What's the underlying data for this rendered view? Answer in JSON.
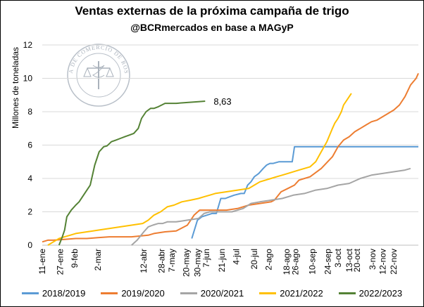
{
  "chart_data": {
    "type": "line",
    "title": "Ventas externas de la próxima campaña de trigo",
    "subtitle": "@BCRmercados en base a MAGyP",
    "xlabel": "",
    "ylabel": "Millones de toneladas",
    "ylim": [
      0,
      12
    ],
    "yticks": [
      "0",
      "2",
      "4",
      "6",
      "8",
      "10",
      "12"
    ],
    "xlim": [
      0,
      337
    ],
    "categories": [
      "11-ene",
      "27-ene",
      "9-feb",
      "2-mar",
      "12-abr",
      "28-abr",
      "7-may",
      "20-may",
      "30-may",
      "7-jun",
      "21-jun",
      "4-jul",
      "20-jul",
      "2-ago",
      "18-ago",
      "26-ago",
      "10-sep",
      "24-sep",
      "13-oct",
      "3-oct",
      "20-oct",
      "3-nov",
      "12-nov",
      "22-nov"
    ],
    "x_positions": [
      0,
      16,
      29,
      50,
      91,
      107,
      116,
      129,
      139,
      147,
      161,
      174,
      190,
      203,
      219,
      227,
      242,
      256,
      275,
      265,
      282,
      296,
      305,
      315
    ],
    "annotation": "8,63",
    "watermark": "BOLSA DE COMERCIO DE ROSARIO",
    "series": [
      {
        "name": "2018/2019",
        "color": "#5b9bd5",
        "x": [
          134,
          139,
          143,
          152,
          156,
          160,
          164,
          168,
          172,
          178,
          181,
          184,
          187,
          190,
          194,
          198,
          201,
          204,
          207,
          212,
          216,
          219,
          224,
          226,
          228,
          232,
          240,
          250,
          260,
          270,
          280,
          290,
          300,
          310,
          320,
          330,
          337
        ],
        "y": [
          0.4,
          1.5,
          1.7,
          1.9,
          1.9,
          2.8,
          2.8,
          2.9,
          3.0,
          3.1,
          3.1,
          3.6,
          3.8,
          4.1,
          4.3,
          4.6,
          4.8,
          4.9,
          4.9,
          5.0,
          5.0,
          5.0,
          5.0,
          5.9,
          5.9,
          5.9,
          5.9,
          5.9,
          5.9,
          5.9,
          5.9,
          5.9,
          5.9,
          5.9,
          5.9,
          5.9,
          5.9
        ]
      },
      {
        "name": "2019/2020",
        "color": "#ed7d31",
        "x": [
          0,
          5,
          10,
          20,
          30,
          40,
          50,
          60,
          70,
          80,
          88,
          95,
          100,
          110,
          120,
          130,
          136,
          141,
          146,
          155,
          165,
          175,
          185,
          195,
          205,
          208,
          214,
          220,
          226,
          230,
          240,
          250,
          260,
          265,
          270,
          275,
          280,
          285,
          290,
          295,
          300,
          305,
          310,
          315,
          320,
          325,
          330,
          335,
          337
        ],
        "y": [
          0.2,
          0.3,
          0.3,
          0.35,
          0.4,
          0.4,
          0.45,
          0.5,
          0.5,
          0.5,
          0.55,
          0.6,
          0.7,
          0.8,
          0.85,
          1.2,
          1.8,
          2.1,
          2.1,
          2.1,
          2.1,
          2.2,
          2.4,
          2.5,
          2.6,
          2.7,
          3.2,
          3.4,
          3.6,
          3.9,
          4.1,
          4.6,
          5.3,
          5.9,
          6.3,
          6.5,
          6.8,
          7.0,
          7.2,
          7.4,
          7.5,
          7.7,
          7.9,
          8.1,
          8.4,
          8.9,
          9.6,
          10.0,
          10.3
        ]
      },
      {
        "name": "2020/2021",
        "color": "#a5a5a5",
        "x": [
          80,
          85,
          91,
          95,
          99,
          104,
          108,
          112,
          120,
          130,
          140,
          145,
          150,
          160,
          170,
          180,
          187,
          195,
          205,
          215,
          225,
          235,
          245,
          255,
          265,
          275,
          285,
          295,
          305,
          315,
          325,
          330
        ],
        "y": [
          0.0,
          0.3,
          0.8,
          1.1,
          1.2,
          1.3,
          1.3,
          1.4,
          1.4,
          1.5,
          1.6,
          1.9,
          2.0,
          2.0,
          2.0,
          2.2,
          2.5,
          2.6,
          2.7,
          2.8,
          3.0,
          3.1,
          3.3,
          3.4,
          3.6,
          3.7,
          4.0,
          4.2,
          4.3,
          4.4,
          4.5,
          4.6
        ]
      },
      {
        "name": "2021/2022",
        "color": "#ffc000",
        "x": [
          5,
          10,
          15,
          20,
          25,
          30,
          40,
          50,
          60,
          70,
          80,
          90,
          95,
          100,
          106,
          112,
          118,
          125,
          133,
          140,
          145,
          150,
          155,
          165,
          175,
          185,
          190,
          195,
          200,
          205,
          210,
          215,
          220,
          230,
          240,
          245,
          250,
          255,
          260,
          262,
          265,
          268,
          270,
          275,
          277
        ],
        "y": [
          0.0,
          0.2,
          0.4,
          0.5,
          0.6,
          0.7,
          0.8,
          0.9,
          1.0,
          1.1,
          1.2,
          1.3,
          1.5,
          1.8,
          2.0,
          2.3,
          2.4,
          2.6,
          2.7,
          2.8,
          2.9,
          3.0,
          3.1,
          3.2,
          3.3,
          3.4,
          3.6,
          3.8,
          3.9,
          4.0,
          4.1,
          4.2,
          4.3,
          4.5,
          4.7,
          5.0,
          5.6,
          6.2,
          7.0,
          7.3,
          7.6,
          8.0,
          8.4,
          8.9,
          9.1
        ]
      },
      {
        "name": "2022/2023",
        "color": "#548235",
        "x": [
          15,
          18,
          20,
          22,
          26,
          30,
          33,
          37,
          40,
          43,
          47,
          51,
          55,
          58,
          62,
          66,
          70,
          74,
          78,
          82,
          86,
          89,
          93,
          97,
          100,
          104,
          110,
          120,
          130,
          140,
          146
        ],
        "y": [
          0.0,
          0.5,
          0.9,
          1.7,
          2.1,
          2.4,
          2.6,
          3.0,
          3.3,
          3.6,
          4.8,
          5.6,
          5.9,
          5.95,
          6.2,
          6.3,
          6.4,
          6.5,
          6.6,
          6.7,
          7.0,
          7.6,
          8.0,
          8.2,
          8.2,
          8.3,
          8.5,
          8.5,
          8.55,
          8.6,
          8.63
        ]
      }
    ]
  }
}
